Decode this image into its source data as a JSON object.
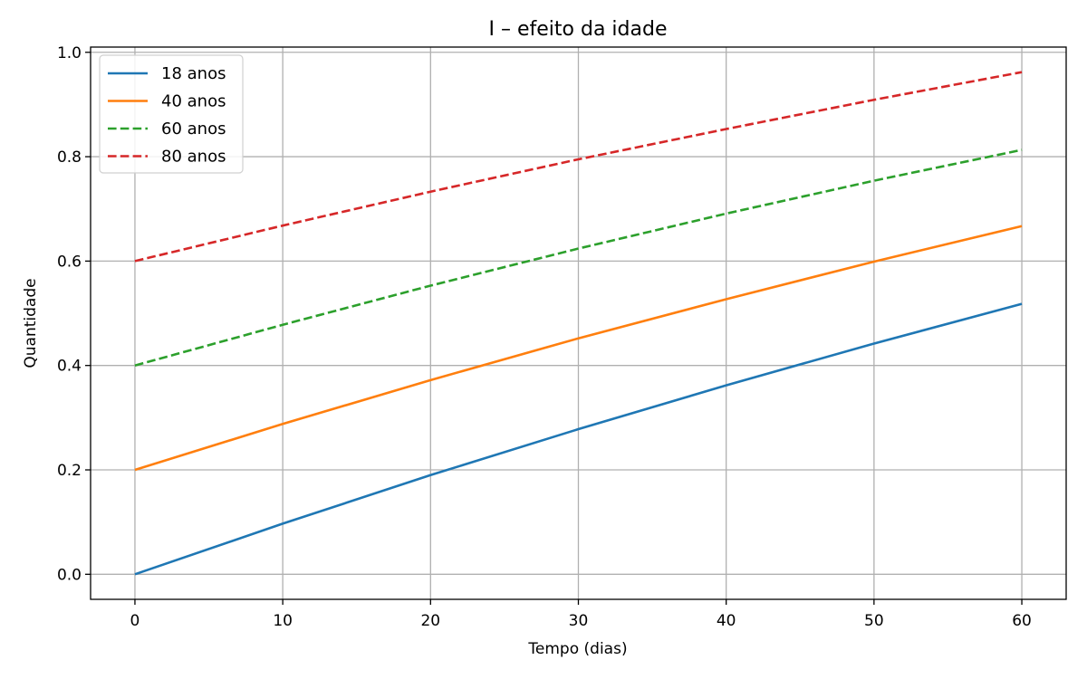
{
  "chart_data": {
    "type": "line",
    "title": "I – efeito da idade",
    "xlabel": "Tempo (dias)",
    "ylabel": "Quantidade",
    "xlim": [
      -3,
      63
    ],
    "ylim": [
      -0.048,
      1.01
    ],
    "xticks": [
      0,
      10,
      20,
      30,
      40,
      50,
      60
    ],
    "xtick_labels": [
      "0",
      "10",
      "20",
      "30",
      "40",
      "50",
      "60"
    ],
    "yticks": [
      0.0,
      0.2,
      0.4,
      0.6,
      0.8,
      1.0
    ],
    "ytick_labels": [
      "0.0",
      "0.2",
      "0.4",
      "0.6",
      "0.8",
      "1.0"
    ],
    "grid": true,
    "legend_position": "top-left",
    "x": [
      0,
      10,
      20,
      30,
      40,
      50,
      60
    ],
    "series": [
      {
        "name": "18 anos",
        "color": "#1f77b4",
        "style": "solid",
        "values": [
          0.0,
          0.097,
          0.19,
          0.278,
          0.362,
          0.442,
          0.518
        ]
      },
      {
        "name": "40 anos",
        "color": "#ff7f0e",
        "style": "solid",
        "values": [
          0.2,
          0.288,
          0.372,
          0.452,
          0.527,
          0.599,
          0.667
        ]
      },
      {
        "name": "60 anos",
        "color": "#2ca02c",
        "style": "dashed",
        "values": [
          0.4,
          0.478,
          0.553,
          0.624,
          0.691,
          0.754,
          0.813
        ]
      },
      {
        "name": "80 anos",
        "color": "#d62728",
        "style": "dashed",
        "values": [
          0.6,
          0.668,
          0.733,
          0.795,
          0.853,
          0.909,
          0.962
        ]
      }
    ]
  }
}
